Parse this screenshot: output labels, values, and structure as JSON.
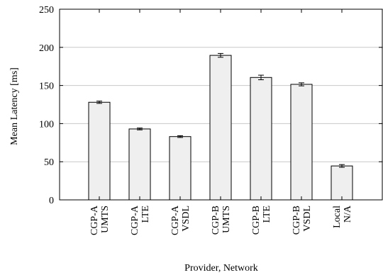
{
  "chart_data": {
    "type": "bar",
    "title": "",
    "xlabel": "Provider, Network",
    "ylabel": "Mean Latency [ms]",
    "ylim": [
      0,
      250
    ],
    "yticks": [
      0,
      50,
      100,
      150,
      200,
      250
    ],
    "grid": "horizontal",
    "categories": [
      [
        "CGP-A",
        "UMTS"
      ],
      [
        "CGP-A",
        "LTE"
      ],
      [
        "CGP-A",
        "VSDL"
      ],
      [
        "CGP-B",
        "UMTS"
      ],
      [
        "CGP-B",
        "LTE"
      ],
      [
        "CGP-B",
        "VSDL"
      ],
      [
        "Local",
        "N/A"
      ]
    ],
    "values": [
      128,
      93,
      83,
      189.5,
      160.5,
      151.5,
      44.5
    ],
    "errors": [
      1.5,
      1.2,
      1.2,
      2.5,
      3,
      2,
      1.8
    ],
    "bar_fill": "#efefef",
    "bar_stroke": "#000000",
    "grid_color": "#c8c8c8"
  }
}
